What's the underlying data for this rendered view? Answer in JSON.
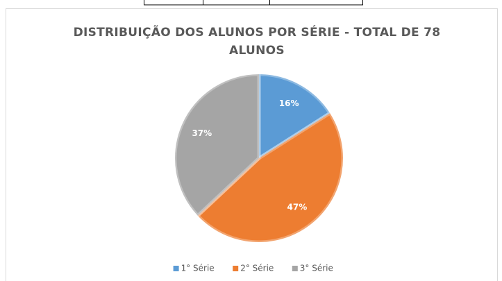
{
  "chart_data": {
    "type": "pie",
    "title": "DISTRIBUIÇÃO DOS ALUNOS POR SÉRIE - TOTAL DE 78 ALUNOS",
    "categories": [
      "1° Série",
      "2° Série",
      "3° Série"
    ],
    "values": [
      16,
      47,
      37
    ],
    "value_labels": [
      "16%",
      "47%",
      "37%"
    ],
    "colors": [
      "#5b9bd5",
      "#ed7d31",
      "#a5a5a5"
    ],
    "legend": "bottom"
  }
}
